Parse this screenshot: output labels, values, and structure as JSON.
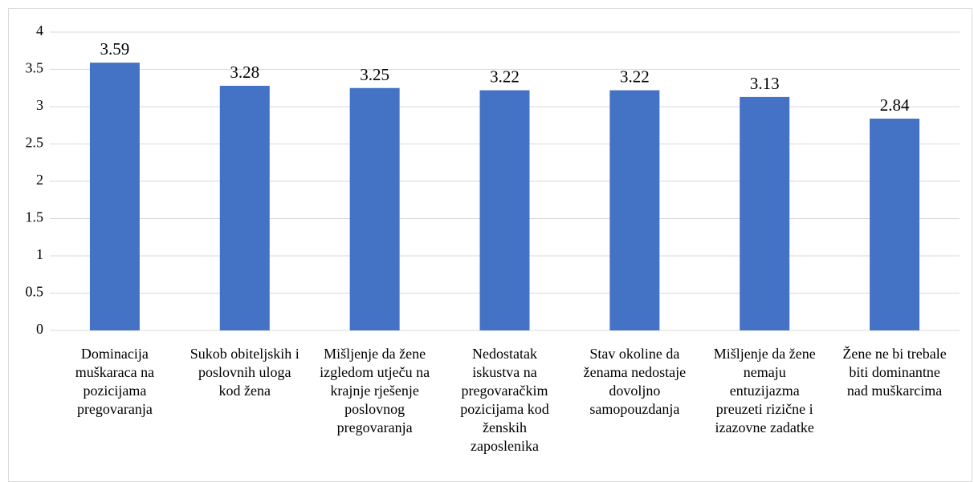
{
  "chart_data": {
    "type": "bar",
    "categories": [
      "Dominacija muškaraca na pozicijama pregovaranja",
      "Sukob obiteljskih i poslovnih uloga kod žena",
      "Mišljenje da žene izgledom utječu na krajnje rješenje poslovnog pregovaranja",
      "Nedostatak iskustva na pregovaračkim pozicijama kod ženskih zaposlenika",
      "Stav okoline da ženama nedostaje dovoljno samopouzdanja",
      "Mišljenje da žene nemaju entuzijazma preuzeti rizične i izazovne zadatke",
      "Žene ne bi trebale biti dominantne nad muškarcima"
    ],
    "values": [
      3.59,
      3.28,
      3.25,
      3.22,
      3.22,
      3.13,
      2.84
    ],
    "color": "#4472c4",
    "ylim": [
      0,
      4
    ],
    "yticks": [
      0,
      0.5,
      1,
      1.5,
      2,
      2.5,
      3,
      3.5,
      4
    ],
    "grid": true
  }
}
